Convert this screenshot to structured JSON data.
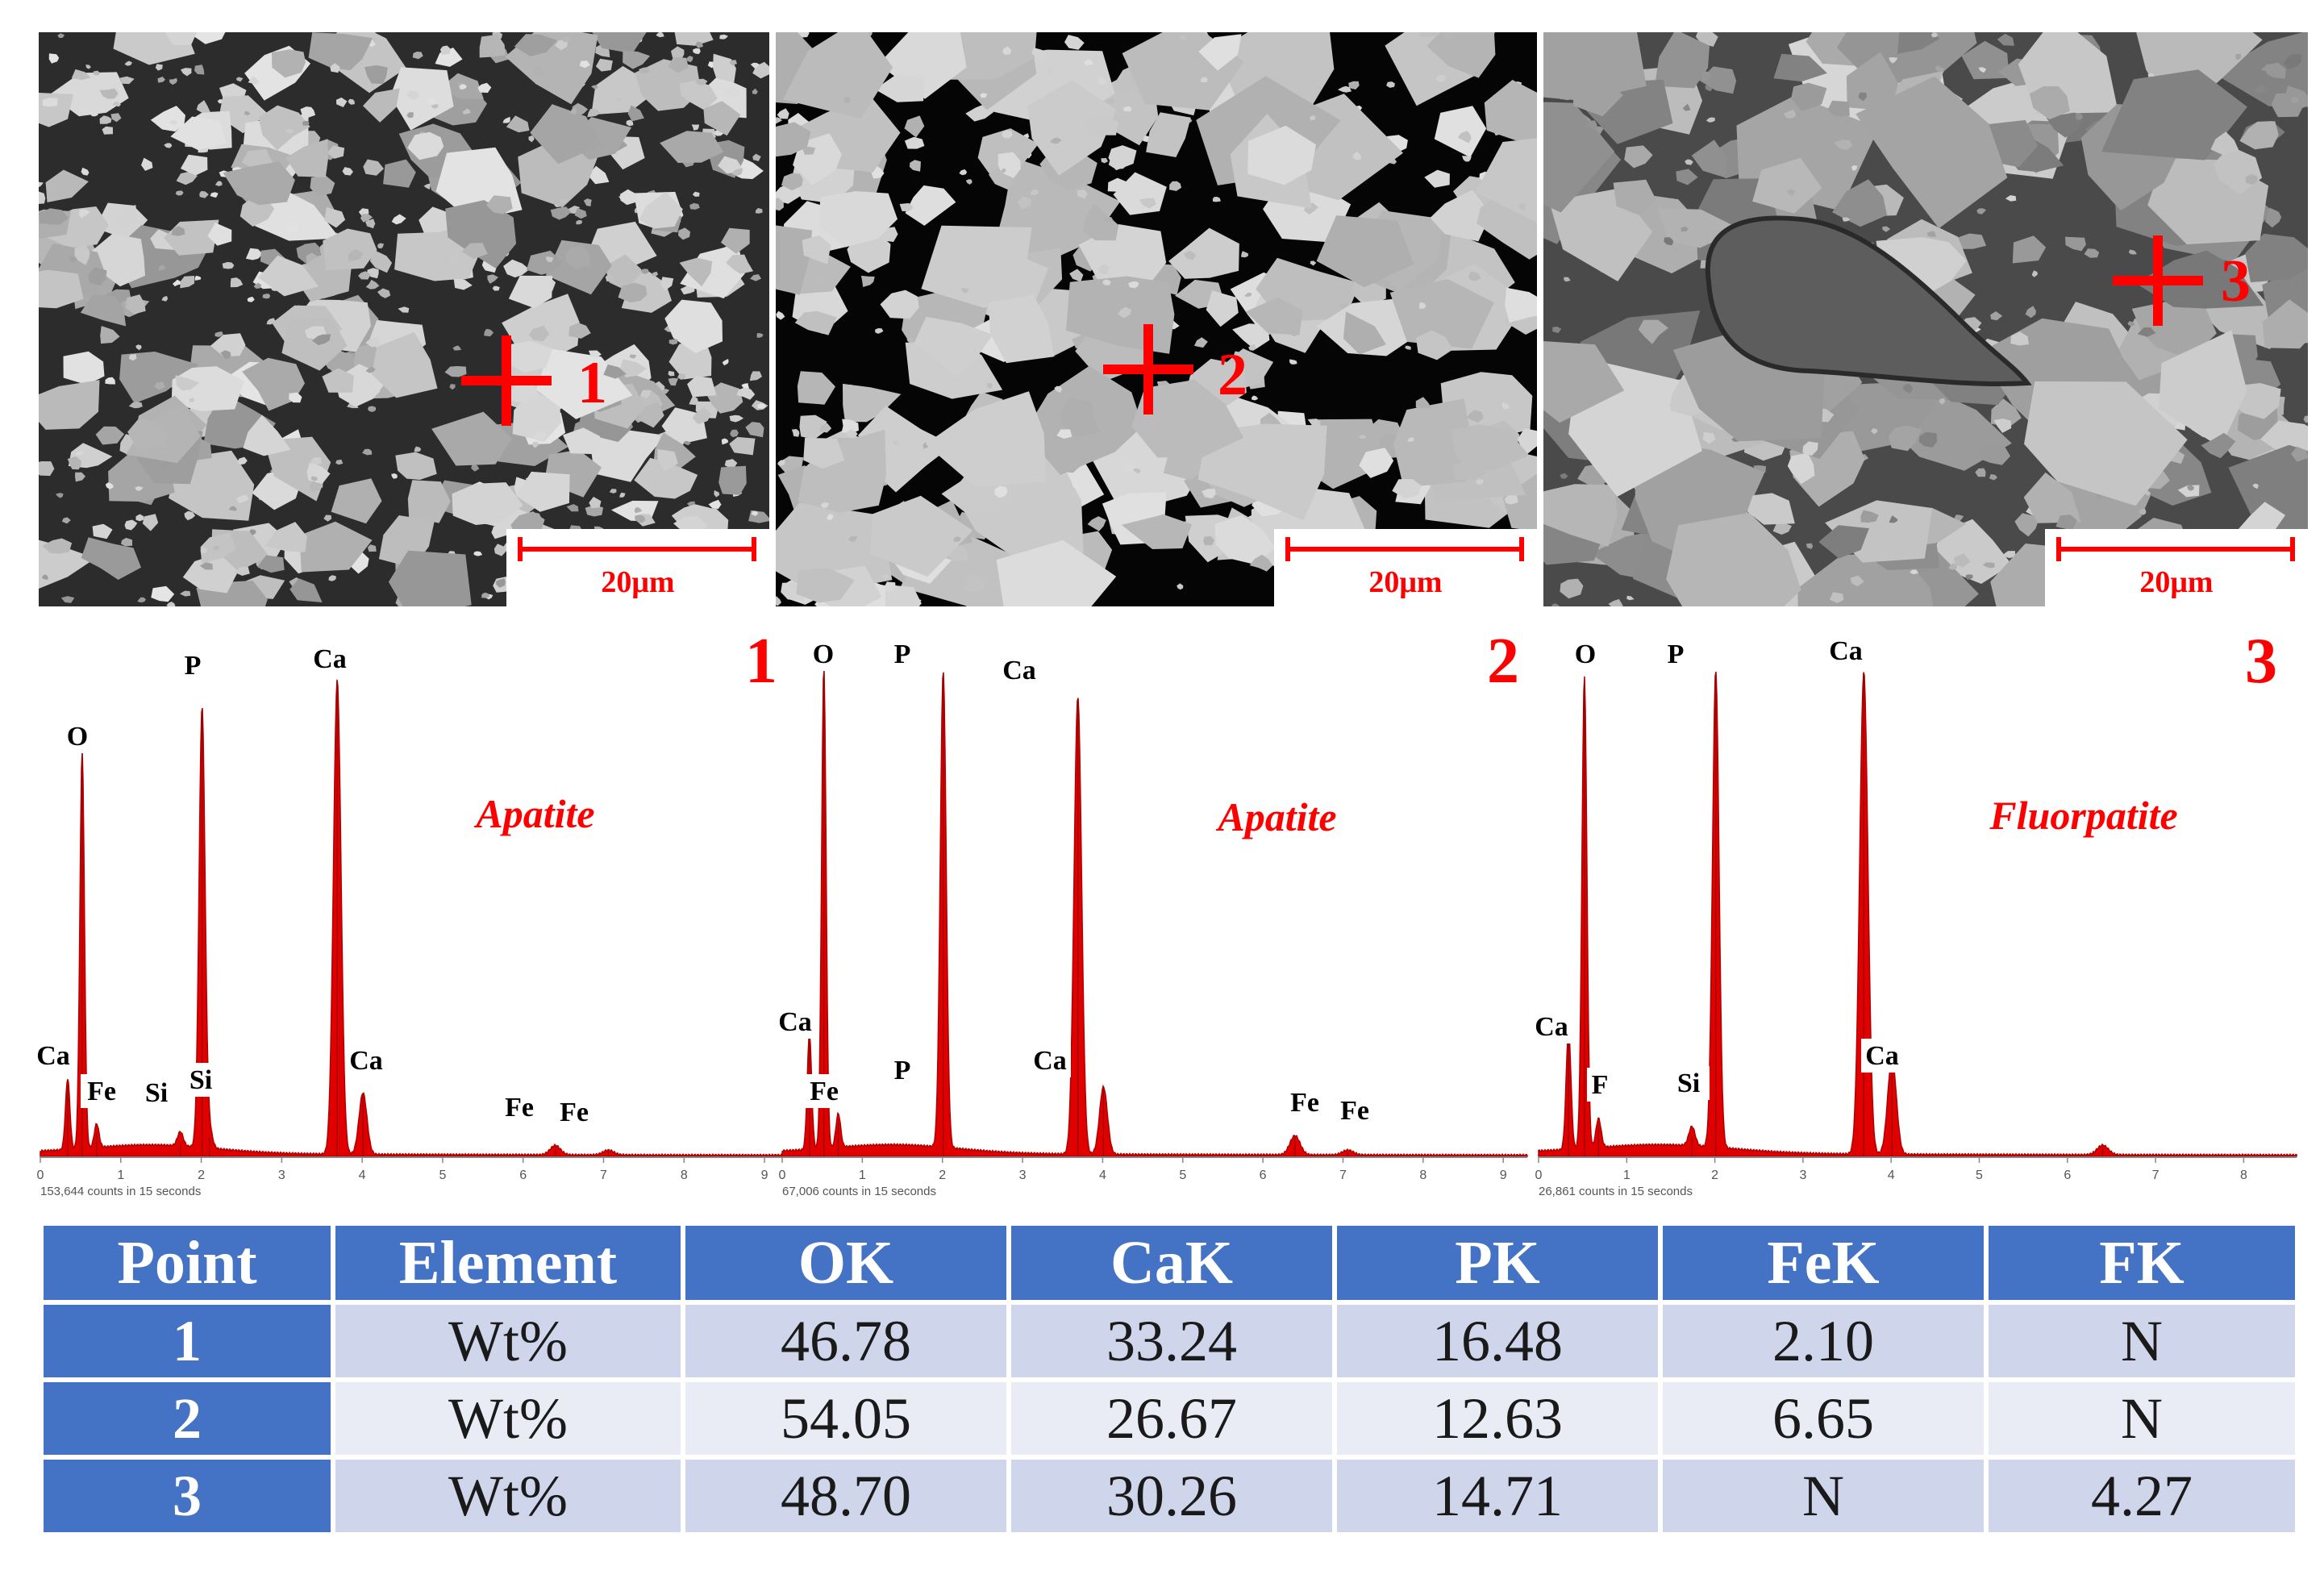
{
  "colors": {
    "accent": "#ff0000",
    "table_header": "#4472c4",
    "row_odd": "#cfd5ea",
    "row_even": "#e9ebf5"
  },
  "micrographs": [
    {
      "point_label": "1",
      "scale_label": "20μm"
    },
    {
      "point_label": "2",
      "scale_label": "20μm"
    },
    {
      "point_label": "3",
      "scale_label": "20μm"
    }
  ],
  "chart_data": [
    {
      "type": "line",
      "panel_label": "1",
      "mineral": "Apatite",
      "x_ticks": [
        "0",
        "1",
        "2",
        "3",
        "4",
        "5",
        "6",
        "7",
        "8",
        "9"
      ],
      "xlim": [
        0,
        9.3
      ],
      "ylim": [
        0,
        1
      ],
      "counts_note": "153,644 counts in 15 seconds",
      "peaks": [
        {
          "element": "Ca",
          "energy": 0.34,
          "height": 0.15
        },
        {
          "element": "O",
          "energy": 0.52,
          "height": 0.84
        },
        {
          "element": "Fe",
          "energy": 0.7,
          "height": 0.05
        },
        {
          "element": "P",
          "energy": 2.01,
          "height": 0.93
        },
        {
          "element": "Si",
          "energy": 1.74,
          "height": 0.03
        },
        {
          "element": "Si",
          "energy": 2.1,
          "height": 0.04
        },
        {
          "element": "Ca",
          "energy": 3.69,
          "height": 1.0
        },
        {
          "element": "Ca",
          "energy": 4.01,
          "height": 0.13
        },
        {
          "element": "Fe",
          "energy": 6.4,
          "height": 0.02
        },
        {
          "element": "Fe",
          "energy": 7.06,
          "height": 0.01
        }
      ],
      "peak_labels": [
        "O",
        "P",
        "Ca",
        "Ca",
        "Ca",
        "Fe",
        "Si",
        "Si",
        "Fe",
        "Fe"
      ]
    },
    {
      "type": "line",
      "panel_label": "2",
      "mineral": "Apatite",
      "x_ticks": [
        "0",
        "1",
        "2",
        "3",
        "4",
        "5",
        "6",
        "7",
        "8",
        "9"
      ],
      "xlim": [
        0,
        9.3
      ],
      "ylim": [
        0,
        1
      ],
      "counts_note": "67,006 counts in 15 seconds",
      "peaks": [
        {
          "element": "Ca",
          "energy": 0.34,
          "height": 0.24
        },
        {
          "element": "O",
          "energy": 0.52,
          "height": 1.0
        },
        {
          "element": "Fe",
          "energy": 0.7,
          "height": 0.07
        },
        {
          "element": "P",
          "energy": 2.01,
          "height": 0.99
        },
        {
          "element": "Ca",
          "energy": 3.69,
          "height": 0.95
        },
        {
          "element": "Ca",
          "energy": 4.01,
          "height": 0.14
        },
        {
          "element": "Fe",
          "energy": 6.4,
          "height": 0.04
        },
        {
          "element": "Fe",
          "energy": 7.06,
          "height": 0.01
        }
      ],
      "peak_labels": [
        "O",
        "P",
        "Ca",
        "Ca",
        "Ca",
        "Fe",
        "P",
        "Fe",
        "Fe"
      ]
    },
    {
      "type": "line",
      "panel_label": "3",
      "mineral": "Fluorpatite",
      "x_ticks": [
        "0",
        "1",
        "2",
        "3",
        "4",
        "5",
        "6",
        "7",
        "8"
      ],
      "xlim": [
        0,
        8.6
      ],
      "ylim": [
        0,
        1
      ],
      "counts_note": "26,861 counts in 15 seconds",
      "peaks": [
        {
          "element": "Ca",
          "energy": 0.34,
          "height": 0.25
        },
        {
          "element": "O",
          "energy": 0.52,
          "height": 0.98
        },
        {
          "element": "F",
          "energy": 0.68,
          "height": 0.06
        },
        {
          "element": "Si",
          "energy": 1.74,
          "height": 0.04
        },
        {
          "element": "P",
          "energy": 2.01,
          "height": 0.99
        },
        {
          "element": "Ca",
          "energy": 3.69,
          "height": 1.0
        },
        {
          "element": "Ca",
          "energy": 4.01,
          "height": 0.2
        },
        {
          "element": "Fe",
          "energy": 6.4,
          "height": 0.02
        }
      ],
      "peak_labels": [
        "O",
        "P",
        "Ca",
        "Ca",
        "F",
        "Si",
        "Ca"
      ]
    }
  ],
  "table": {
    "headers": [
      "Point",
      "Element",
      "OK",
      "CaK",
      "PK",
      "FeK",
      "FK"
    ],
    "rows": [
      [
        "1",
        "Wt%",
        "46.78",
        "33.24",
        "16.48",
        "2.10",
        "N"
      ],
      [
        "2",
        "Wt%",
        "54.05",
        "26.67",
        "12.63",
        "6.65",
        "N"
      ],
      [
        "3",
        "Wt%",
        "48.70",
        "30.26",
        "14.71",
        "N",
        "4.27"
      ]
    ]
  }
}
